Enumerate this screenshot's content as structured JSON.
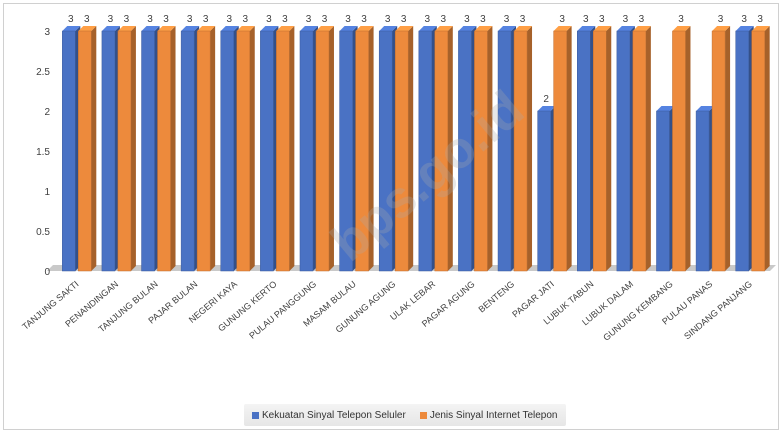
{
  "chart_data": {
    "type": "bar",
    "categories": [
      "TANJUNG SAKTI",
      "PENANDINGAN",
      "TANJUNG BULAN",
      "PAJAR BULAN",
      "NEGERI KAYA",
      "GUNUNG KERTO",
      "PULAU PANGGUNG",
      "MASAM BULAU",
      "GUNUNG AGUNG",
      "ULAK LEBAR",
      "PAGAR AGUNG",
      "BENTENG",
      "PAGAR JATI",
      "LUBUK TABUN",
      "LUBUK DALAM",
      "GUNUNG KEMBANG",
      "PULAU PANAS",
      "SINDANG PANJANG"
    ],
    "series": [
      {
        "name": "Kekuatan Sinyal Telepon Seluler",
        "color": "#4a72c4",
        "values": [
          3,
          3,
          3,
          3,
          3,
          3,
          3,
          3,
          3,
          3,
          3,
          3,
          2,
          3,
          3,
          2,
          2,
          3
        ]
      },
      {
        "name": "Jenis Sinyal Internet Telepon",
        "color": "#ed8a3c",
        "values": [
          3,
          3,
          3,
          3,
          3,
          3,
          3,
          3,
          3,
          3,
          3,
          3,
          3,
          3,
          3,
          3,
          3,
          3
        ]
      }
    ],
    "data_labels": [
      [
        "3",
        "3"
      ],
      [
        "3",
        "3"
      ],
      [
        "3",
        "3"
      ],
      [
        "3",
        "3"
      ],
      [
        "3",
        "3"
      ],
      [
        "3",
        "3"
      ],
      [
        "3",
        "3"
      ],
      [
        "3",
        "3"
      ],
      [
        "3",
        "3"
      ],
      [
        "3",
        "3"
      ],
      [
        "3",
        "3"
      ],
      [
        "3",
        "3"
      ],
      [
        "2",
        "3"
      ],
      [
        "3",
        "3"
      ],
      [
        "3",
        "3"
      ],
      [
        "",
        "3"
      ],
      [
        "",
        "3"
      ],
      [
        "3",
        "3"
      ]
    ],
    "y_ticks": [
      "0",
      "0.5",
      "1",
      "1.5",
      "2",
      "2.5",
      "3"
    ],
    "ylim": [
      0,
      3
    ],
    "title": "",
    "xlabel": "",
    "ylabel": "",
    "grid": false,
    "legend_position": "bottom"
  },
  "legend": {
    "items": [
      {
        "label": "Kekuatan Sinyal Telepon Seluler",
        "color": "#4a72c4"
      },
      {
        "label": "Jenis Sinyal Internet Telepon",
        "color": "#ed8a3c"
      }
    ]
  },
  "watermark": {
    "text": "bps.go.id"
  }
}
